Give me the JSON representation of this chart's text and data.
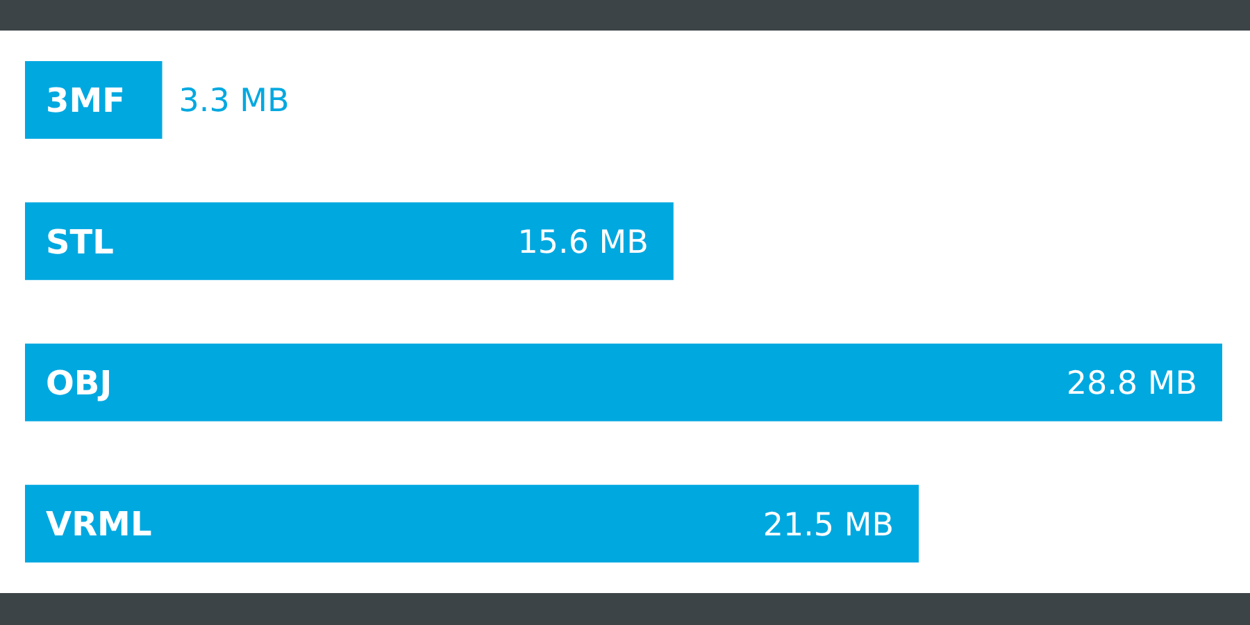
{
  "chart_data": {
    "type": "bar",
    "orientation": "horizontal",
    "categories": [
      "3MF",
      "STL",
      "OBJ",
      "VRML"
    ],
    "values": [
      3.3,
      15.6,
      28.8,
      21.5
    ],
    "value_labels": [
      "3.3 MB",
      "15.6 MB",
      "28.8 MB",
      "21.5 MB"
    ],
    "color": "#00a8e0"
  }
}
